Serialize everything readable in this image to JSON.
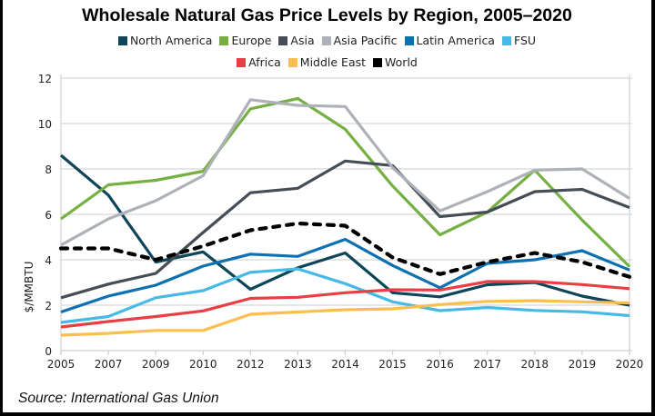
{
  "chart_data": {
    "type": "line",
    "title": "Wholesale Natural Gas Price Levels by Region, 2005–2020",
    "xlabel": "",
    "ylabel": "$/MMBTU",
    "ylim": [
      0,
      12
    ],
    "yticks": [
      0,
      2,
      4,
      6,
      8,
      10,
      12
    ],
    "grid": true,
    "legend_position": "top-center",
    "categories": [
      "2005",
      "2007",
      "2009",
      "2010",
      "2012",
      "2013",
      "2014",
      "2015",
      "2016",
      "2017",
      "2018",
      "2019",
      "2020"
    ],
    "series": [
      {
        "name": "North America",
        "color": "#0e4559",
        "dashed": false,
        "values": [
          8.6,
          6.85,
          3.9,
          4.35,
          2.7,
          3.65,
          4.3,
          2.55,
          2.37,
          2.9,
          3.0,
          2.4,
          2.0
        ]
      },
      {
        "name": "Europe",
        "color": "#76b043",
        "dashed": false,
        "values": [
          5.8,
          7.3,
          7.5,
          7.9,
          10.65,
          11.1,
          9.75,
          7.25,
          5.1,
          6.1,
          7.95,
          5.75,
          3.7
        ]
      },
      {
        "name": "Asia",
        "color": "#454d56",
        "dashed": false,
        "values": [
          2.33,
          2.93,
          3.4,
          5.2,
          6.95,
          7.15,
          8.35,
          8.15,
          5.9,
          6.1,
          7.0,
          7.1,
          6.3
        ]
      },
      {
        "name": "Asia Pacific",
        "color": "#aeb2b8",
        "dashed": false,
        "values": [
          4.65,
          5.8,
          6.6,
          7.7,
          11.05,
          10.8,
          10.75,
          8.05,
          6.15,
          7.0,
          7.95,
          8.0,
          6.7
        ]
      },
      {
        "name": "Latin America",
        "color": "#0d70b0",
        "dashed": false,
        "values": [
          1.7,
          2.4,
          2.88,
          3.72,
          4.25,
          4.15,
          4.9,
          3.75,
          2.77,
          3.84,
          4.0,
          4.4,
          3.55
        ]
      },
      {
        "name": "FSU",
        "color": "#46b9e6",
        "dashed": false,
        "values": [
          1.24,
          1.5,
          2.33,
          2.64,
          3.45,
          3.6,
          2.95,
          2.15,
          1.76,
          1.9,
          1.77,
          1.71,
          1.54
        ]
      },
      {
        "name": "Africa",
        "color": "#e83e44",
        "dashed": false,
        "values": [
          1.04,
          1.28,
          1.5,
          1.75,
          2.3,
          2.35,
          2.55,
          2.68,
          2.67,
          3.04,
          3.04,
          2.91,
          2.73
        ]
      },
      {
        "name": "Middle East",
        "color": "#fbbe4f",
        "dashed": false,
        "values": [
          0.68,
          0.76,
          0.89,
          0.89,
          1.6,
          1.7,
          1.8,
          1.84,
          2.03,
          2.17,
          2.2,
          2.15,
          2.1
        ]
      },
      {
        "name": "World",
        "color": "#000000",
        "dashed": true,
        "values": [
          4.5,
          4.5,
          4.0,
          4.6,
          5.3,
          5.6,
          5.5,
          4.1,
          3.37,
          3.9,
          4.3,
          3.9,
          3.25
        ]
      }
    ],
    "source": "Source: International Gas Union"
  }
}
